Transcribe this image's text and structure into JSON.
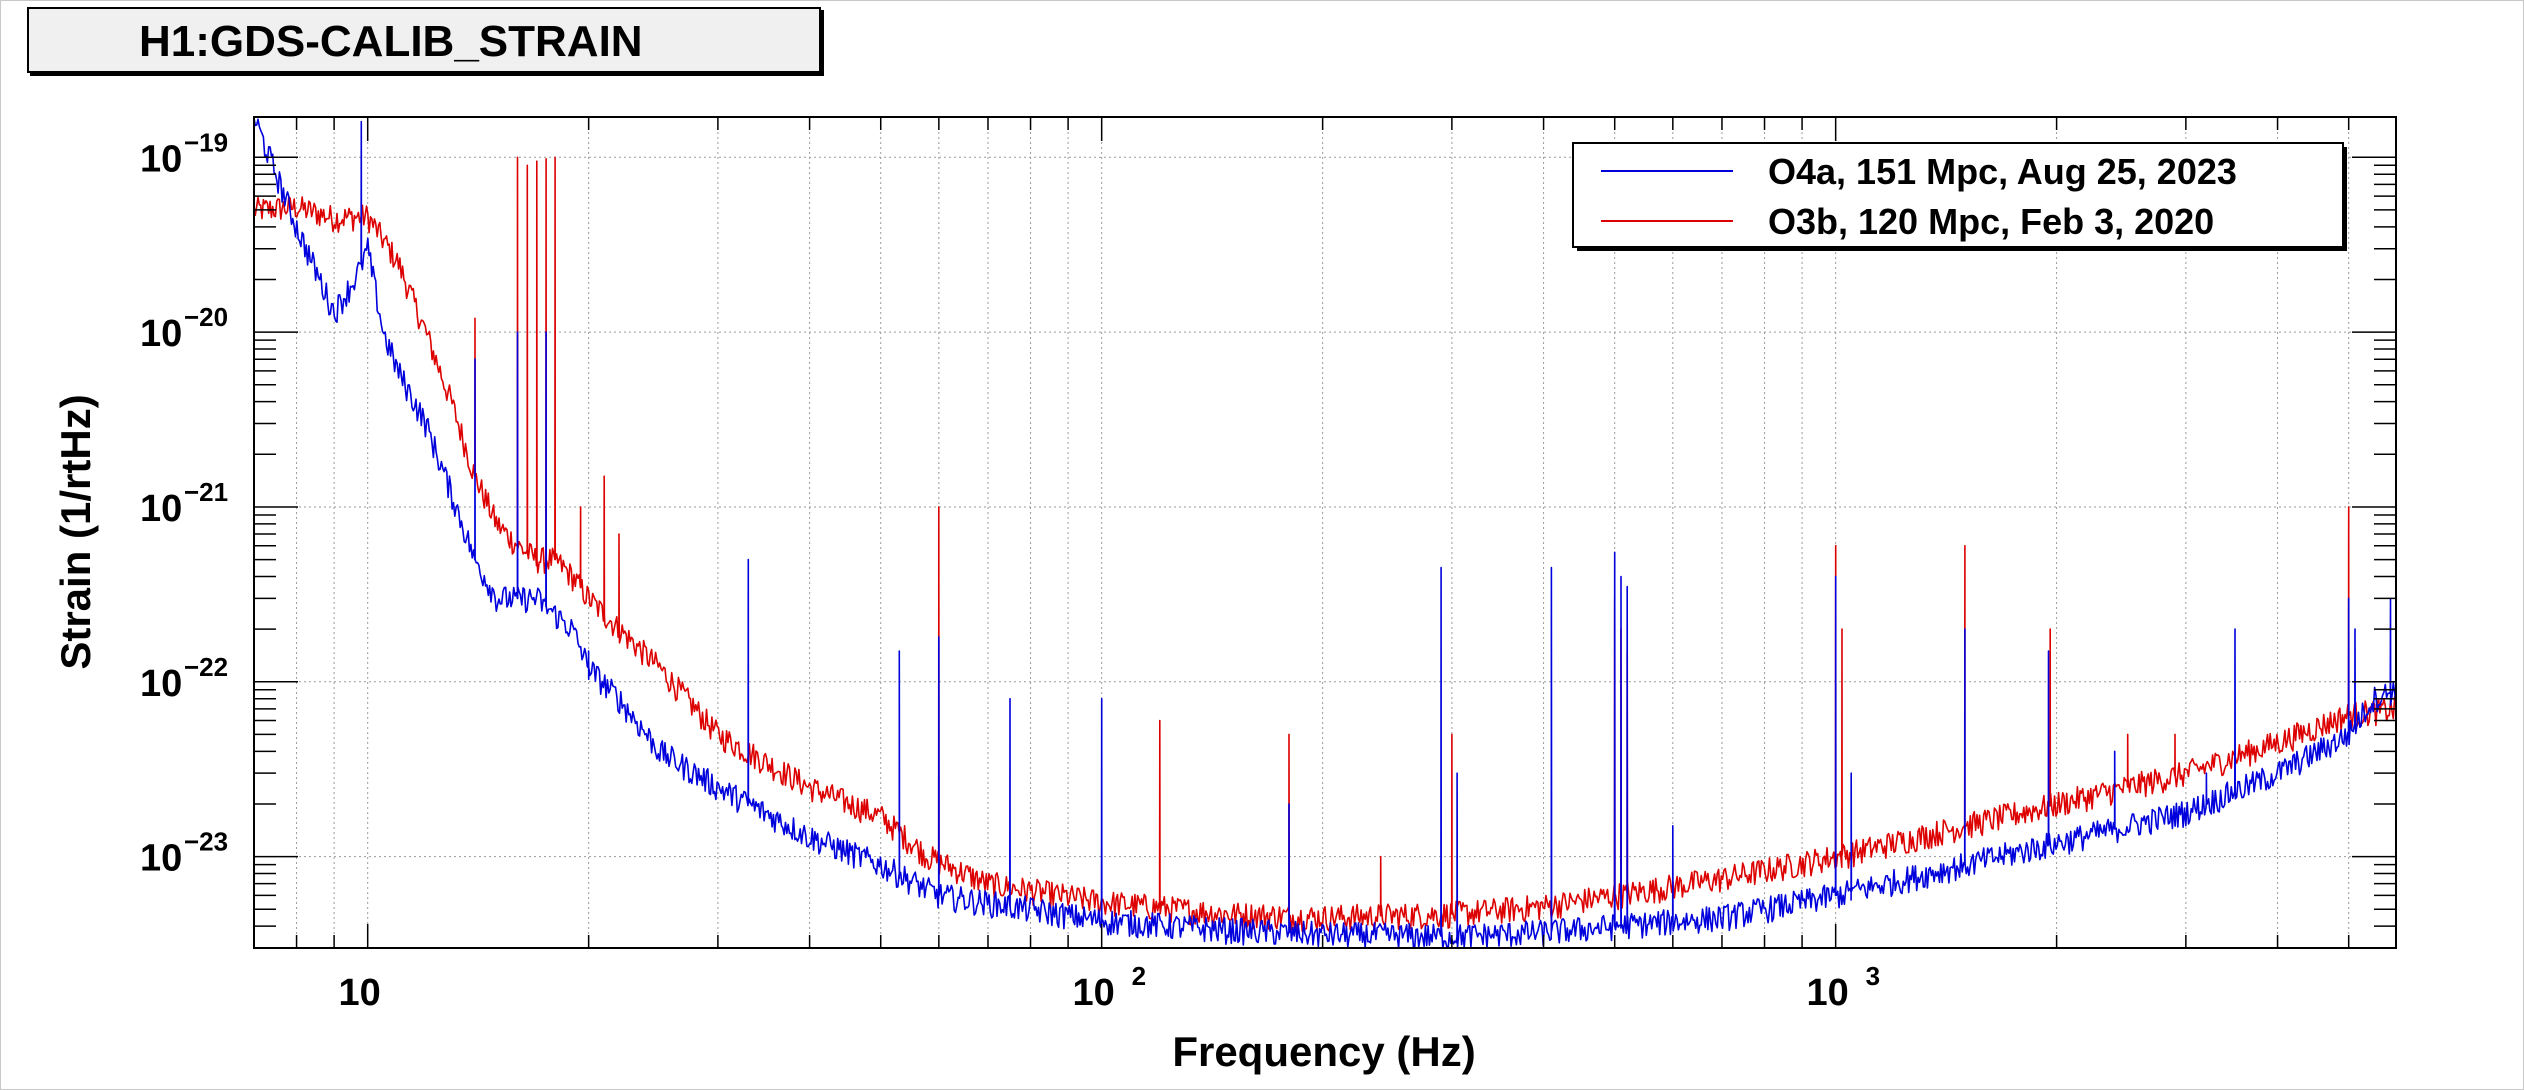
{
  "title": "H1:GDS-CALIB_STRAIN",
  "chart_data": {
    "type": "line",
    "xlabel": "Frequency (Hz)",
    "ylabel": "Strain (1/rtHz)",
    "x_scale": "log",
    "y_scale": "log",
    "xlim": [
      7,
      5800
    ],
    "ylim": [
      3e-24,
      1.7e-19
    ],
    "grid": true,
    "legend_position": "top-right",
    "x_ticks": [
      {
        "label": "10",
        "value": 10,
        "exp": ""
      },
      {
        "label": "10",
        "value": 100,
        "exp": "2"
      },
      {
        "label": "10",
        "value": 1000,
        "exp": "3"
      }
    ],
    "y_ticks": [
      {
        "label": "10",
        "value": 1e-19,
        "exp": "−19"
      },
      {
        "label": "10",
        "value": 1e-20,
        "exp": "−20"
      },
      {
        "label": "10",
        "value": 1e-21,
        "exp": "−21"
      },
      {
        "label": "10",
        "value": 1e-22,
        "exp": "−22"
      },
      {
        "label": "10",
        "value": 1e-23,
        "exp": "−23"
      }
    ],
    "series": [
      {
        "name": "O3b, 120 Mpc, Feb 3, 2020",
        "color": "#dd0000",
        "baseline": [
          [
            7,
            5e-20
          ],
          [
            8,
            5.2e-20
          ],
          [
            9,
            4.5e-20
          ],
          [
            10,
            4.6e-20
          ],
          [
            11,
            2.5e-20
          ],
          [
            12,
            1e-20
          ],
          [
            13,
            4e-21
          ],
          [
            14,
            1.5e-21
          ],
          [
            15,
            8e-22
          ],
          [
            16,
            6e-22
          ],
          [
            17,
            5e-22
          ],
          [
            18,
            5e-22
          ],
          [
            19,
            4e-22
          ],
          [
            20,
            3e-22
          ],
          [
            22,
            2e-22
          ],
          [
            25,
            1.2e-22
          ],
          [
            30,
            5e-23
          ],
          [
            40,
            2.5e-23
          ],
          [
            50,
            1.7e-23
          ],
          [
            58,
            1e-23
          ],
          [
            70,
            7e-24
          ],
          [
            100,
            5.5e-24
          ],
          [
            150,
            4.7e-24
          ],
          [
            200,
            4.5e-24
          ],
          [
            300,
            4.7e-24
          ],
          [
            400,
            5.2e-24
          ],
          [
            500,
            6e-24
          ],
          [
            700,
            7.5e-24
          ],
          [
            1000,
            1e-23
          ],
          [
            1500,
            1.5e-23
          ],
          [
            2000,
            2e-23
          ],
          [
            3000,
            3e-23
          ],
          [
            4000,
            4.5e-23
          ],
          [
            5000,
            6.5e-23
          ],
          [
            5800,
            7e-23
          ]
        ],
        "peaks": [
          [
            14,
            1.2e-20
          ],
          [
            16,
            1e-19
          ],
          [
            16.5,
            9e-20
          ],
          [
            17,
            9.5e-20
          ],
          [
            17.5,
            9.8e-20
          ],
          [
            18,
            1e-19
          ],
          [
            19.5,
            1e-21
          ],
          [
            21,
            1.5e-21
          ],
          [
            22,
            7e-22
          ],
          [
            60,
            1e-21
          ],
          [
            120,
            6e-23
          ],
          [
            180,
            5e-23
          ],
          [
            240,
            1e-23
          ],
          [
            300,
            5e-23
          ],
          [
            500,
            3e-22
          ],
          [
            510,
            2e-22
          ],
          [
            520,
            1.5e-22
          ],
          [
            1000,
            6e-22
          ],
          [
            1020,
            2e-22
          ],
          [
            1500,
            6e-22
          ],
          [
            1960,
            2e-22
          ],
          [
            2500,
            5e-23
          ],
          [
            2900,
            5e-23
          ],
          [
            5000,
            1e-21
          ]
        ]
      },
      {
        "name": "O4a, 151 Mpc, Aug 25, 2023",
        "color": "#0000dd",
        "baseline": [
          [
            7,
            1.7e-19
          ],
          [
            8,
            4e-20
          ],
          [
            9,
            1.3e-20
          ],
          [
            9.6,
            2e-20
          ],
          [
            10,
            3e-20
          ],
          [
            10.5,
            1e-20
          ],
          [
            11,
            6e-21
          ],
          [
            12,
            3e-21
          ],
          [
            13,
            1.2e-21
          ],
          [
            14,
            5e-22
          ],
          [
            15,
            3e-22
          ],
          [
            17,
            3e-22
          ],
          [
            19,
            2e-22
          ],
          [
            20,
            1.2e-22
          ],
          [
            22,
            8e-23
          ],
          [
            25,
            4e-23
          ],
          [
            30,
            2.5e-23
          ],
          [
            40,
            1.3e-23
          ],
          [
            50,
            9e-24
          ],
          [
            60,
            6e-24
          ],
          [
            80,
            5e-24
          ],
          [
            100,
            4.3e-24
          ],
          [
            150,
            3.8e-24
          ],
          [
            200,
            3.6e-24
          ],
          [
            300,
            3.5e-24
          ],
          [
            400,
            3.7e-24
          ],
          [
            500,
            4e-24
          ],
          [
            700,
            4.5e-24
          ],
          [
            1000,
            6e-24
          ],
          [
            1500,
            9e-24
          ],
          [
            2000,
            1.2e-23
          ],
          [
            3000,
            1.8e-23
          ],
          [
            4000,
            3e-23
          ],
          [
            5000,
            5e-23
          ],
          [
            5400,
            8e-23
          ],
          [
            5800,
            9e-23
          ]
        ],
        "peaks": [
          [
            9.8,
            1.6e-19
          ],
          [
            14,
            7e-21
          ],
          [
            16,
            1e-20
          ],
          [
            17.5,
            1e-20
          ],
          [
            20,
            1.5e-22
          ],
          [
            33,
            5e-22
          ],
          [
            53,
            1.5e-22
          ],
          [
            60,
            1.8e-22
          ],
          [
            75,
            8e-23
          ],
          [
            100,
            8e-23
          ],
          [
            180,
            2e-23
          ],
          [
            290,
            4.5e-22
          ],
          [
            305,
            3e-23
          ],
          [
            410,
            4.5e-22
          ],
          [
            500,
            5.5e-22
          ],
          [
            510,
            4e-22
          ],
          [
            520,
            3.5e-22
          ],
          [
            600,
            1.5e-23
          ],
          [
            1000,
            4e-22
          ],
          [
            1050,
            3e-23
          ],
          [
            1500,
            2e-22
          ],
          [
            1950,
            1.5e-22
          ],
          [
            2400,
            4e-23
          ],
          [
            3200,
            3e-23
          ],
          [
            3500,
            2e-22
          ],
          [
            5000,
            3e-22
          ],
          [
            5100,
            2e-22
          ],
          [
            5700,
            3e-22
          ]
        ]
      }
    ],
    "legend": [
      {
        "label": "O4a, 151 Mpc, Aug 25, 2023",
        "color": "#0000dd"
      },
      {
        "label": "O3b, 120 Mpc, Feb 3, 2020",
        "color": "#dd0000"
      }
    ]
  }
}
